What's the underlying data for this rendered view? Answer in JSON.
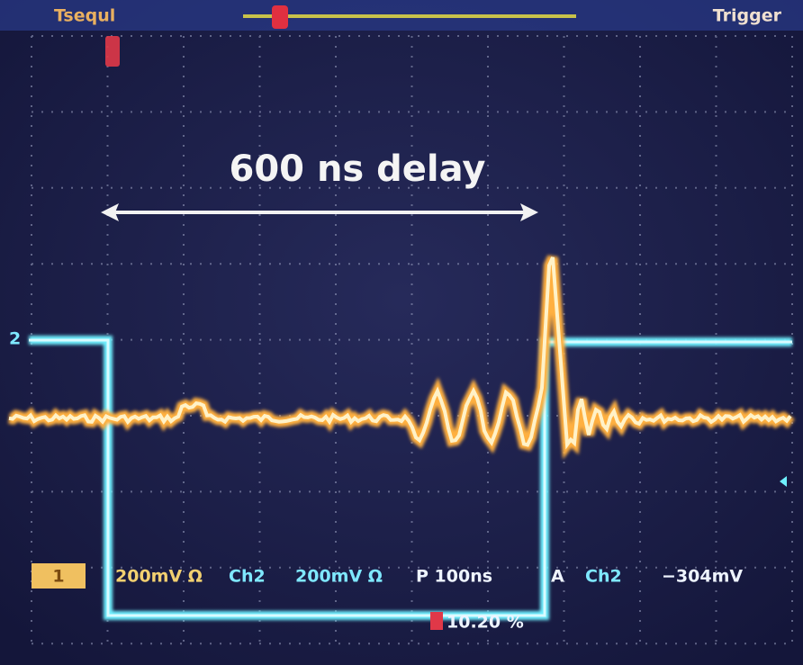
{
  "header": {
    "left": "Tsequl",
    "right": "Trigger"
  },
  "channel_marker": "2",
  "annotation": "600 ns delay",
  "readout": {
    "ch1_label": "1",
    "ch1_scale": "200mV Ω",
    "ch2_label": "Ch2",
    "ch2_scale": "200mV Ω",
    "timebase": "P 100ns",
    "trigger_mode": "A",
    "trigger_source": "Ch2",
    "trigger_level": "−304mV",
    "position": "10.20 %"
  }
}
